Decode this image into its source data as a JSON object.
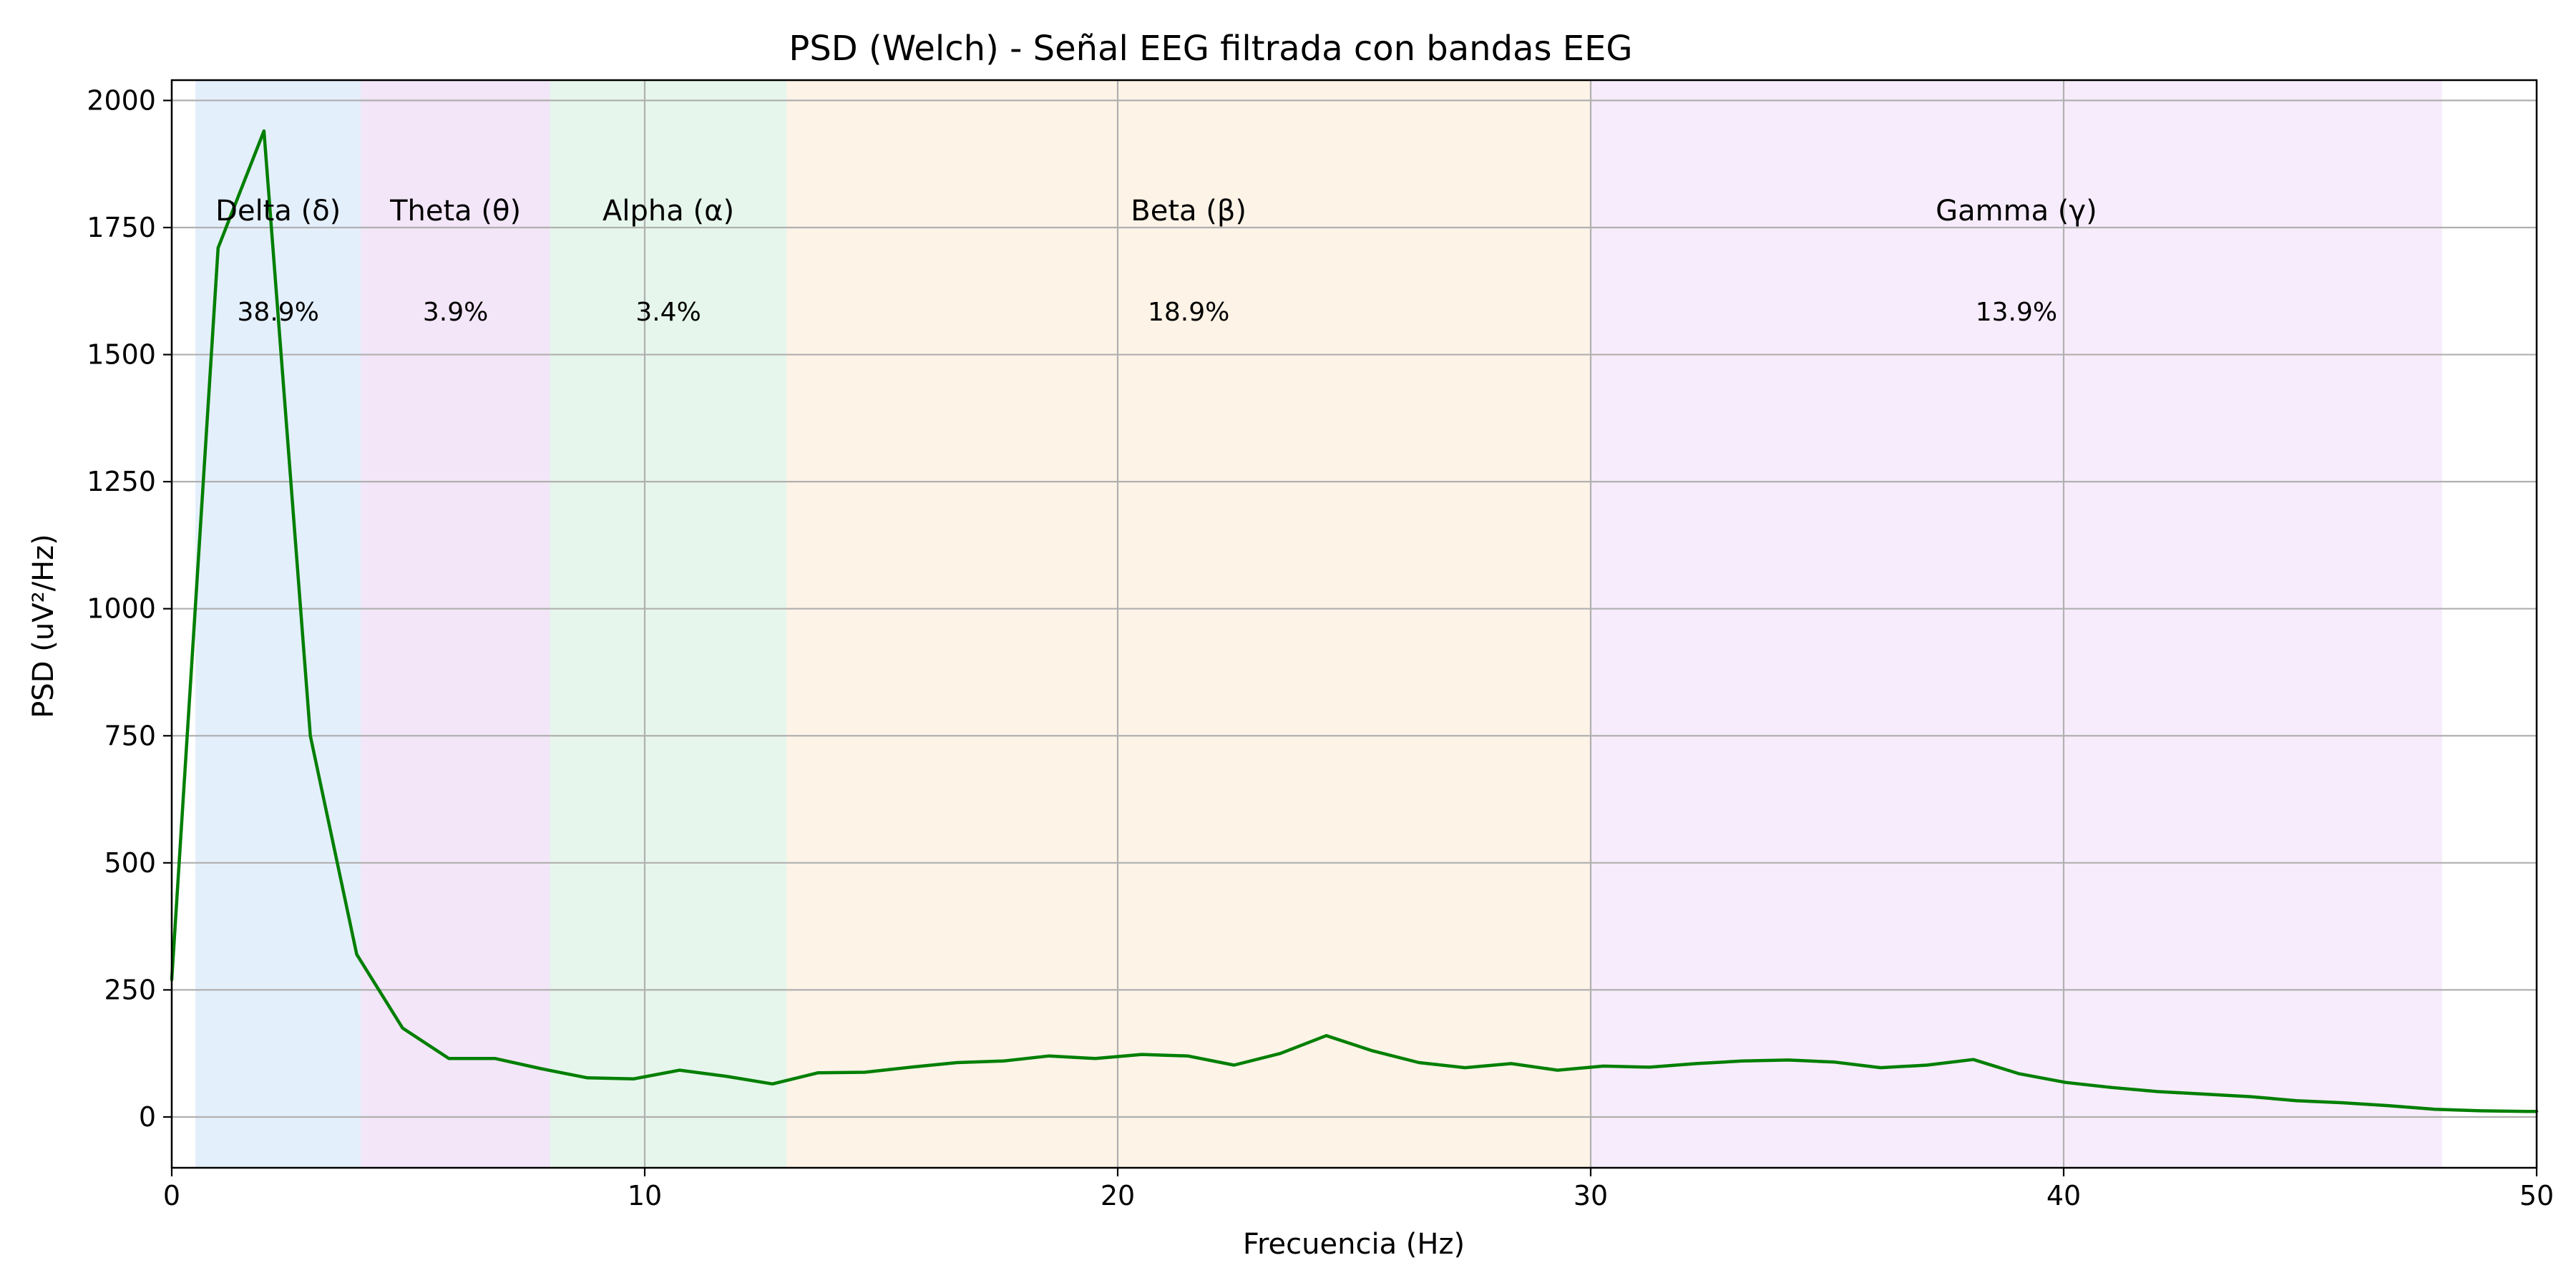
{
  "chart_data": {
    "type": "line",
    "title": "PSD (Welch) - Señal EEG filtrada con bandas EEG",
    "xlabel": "Frecuencia (Hz)",
    "ylabel": "PSD (uV²/Hz)",
    "xlim": [
      0,
      50
    ],
    "ylim": [
      -100,
      2040
    ],
    "xticks": [
      0,
      10,
      20,
      30,
      40,
      50
    ],
    "yticks": [
      0,
      250,
      500,
      750,
      1000,
      1250,
      1500,
      1750,
      2000
    ],
    "grid": true,
    "line_color": "#007f00",
    "series": [
      {
        "x": [
          0.0,
          0.98,
          1.95,
          2.93,
          3.91,
          4.88,
          5.86,
          6.84,
          7.81,
          8.79,
          9.77,
          10.74,
          11.72,
          12.7,
          13.67,
          14.65,
          15.63,
          16.6,
          17.58,
          18.55,
          19.53,
          20.51,
          21.48,
          22.46,
          23.44,
          24.41,
          25.39,
          26.37,
          27.34,
          28.32,
          29.3,
          30.27,
          31.25,
          32.23,
          33.2,
          34.18,
          35.16,
          36.13,
          37.11,
          38.09,
          39.06,
          40.04,
          41.02,
          41.99,
          42.97,
          43.95,
          44.92,
          45.9,
          46.88,
          47.85,
          48.83,
          49.8,
          50.0
        ],
        "values": [
          270,
          1710,
          1940,
          750,
          320,
          175,
          115,
          115,
          95,
          77,
          75,
          92,
          80,
          65,
          87,
          88,
          98,
          107,
          110,
          120,
          115,
          123,
          120,
          102,
          125,
          160,
          130,
          107,
          97,
          105,
          92,
          100,
          98,
          105,
          110,
          112,
          108,
          97,
          102,
          113,
          85,
          68,
          58,
          50,
          45,
          40,
          32,
          28,
          22,
          15,
          12,
          11,
          11
        ]
      }
    ],
    "bands": [
      {
        "label": "Delta (δ)",
        "percent": "38.9%",
        "range": [
          0.5,
          4
        ],
        "color": "#1e78e6"
      },
      {
        "label": "Theta (θ)",
        "percent": "3.9%",
        "range": [
          4,
          8
        ],
        "color": "#a032c8"
      },
      {
        "label": "Alpha (α)",
        "percent": "3.4%",
        "range": [
          8,
          13
        ],
        "color": "#32b464"
      },
      {
        "label": "Beta (β)",
        "percent": "18.9%",
        "range": [
          13,
          30
        ],
        "color": "#f0a03c"
      },
      {
        "label": "Gamma (γ)",
        "percent": "13.9%",
        "range": [
          30,
          48
        ],
        "color": "#be64dc"
      }
    ]
  }
}
